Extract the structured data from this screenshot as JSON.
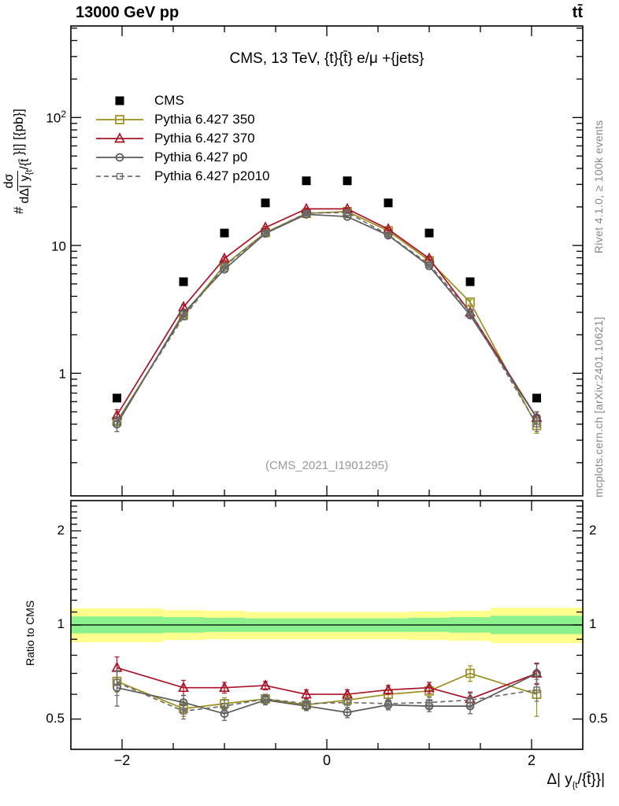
{
  "header": {
    "beam_energy": "13000 GeV pp",
    "process": "tt̄"
  },
  "panel": {
    "title": "CMS, 13 TeV, {t}{t̄} e/μ +{jets}",
    "watermark": "(CMS_2021_I1901295)"
  },
  "side_notes": {
    "rivet": "Rivet 4.1.0, ≥ 100k events",
    "mcplots": "mcplots.cern.ch [arXiv:2401.10621]"
  },
  "axes": {
    "y_prefix": "#",
    "y_num": "dσ",
    "y_den_main": "dΔ| y",
    "y_den_sub": "{t",
    "y_den_rest": "/{t̄",
    "y_suffix": "}|] [{pb}]",
    "y_ticks": [
      {
        "base": "10",
        "exp": "2"
      },
      {
        "base": "10",
        "exp": ""
      },
      {
        "base": "1",
        "exp": ""
      }
    ],
    "ratio_label": "Ratio to CMS",
    "ratio_ticks": [
      "2",
      "1",
      "0.5"
    ],
    "x_ticks": [
      "−2",
      "0",
      "2"
    ],
    "x_label_main": "Δ| y",
    "x_label_sub": "{t",
    "x_label_rest": "/{t̄}}|"
  },
  "chart_data": {
    "type": "line",
    "title": "CMS, 13 TeV, {t}{t̄} e/μ +{jets}",
    "xlabel": "Δ| y_{t}/{t̄}}|",
    "ylabel": "# dσ/dΔ| y_{t}/{t̄}}|] [{pb}]",
    "x_range": [
      -2.5,
      2.5
    ],
    "y_scale": "log",
    "y_range": [
      0.11,
      520
    ],
    "ratio_scale": "log",
    "ratio_range": [
      0.4,
      2.5
    ],
    "x_tick_values": [
      -2,
      0,
      2
    ],
    "x": [
      -2.05,
      -1.4,
      -1.0,
      -0.6,
      -0.2,
      0.2,
      0.6,
      1.0,
      1.4,
      2.05
    ],
    "bin_edges": [
      -2.5,
      -1.6,
      -1.2,
      -0.8,
      -0.4,
      0,
      0.4,
      0.8,
      1.2,
      1.6,
      2.5
    ],
    "series": [
      {
        "label": "CMS",
        "marker": "filled-square",
        "color": "#000000",
        "line": "none",
        "values": [
          0.64,
          5.2,
          12.5,
          21.5,
          32,
          32,
          21.5,
          12.5,
          5.2,
          0.64
        ]
      },
      {
        "label": "Pythia 6.427 350",
        "marker": "open-square",
        "color": "#9a8f1e",
        "line": "solid",
        "values": [
          0.42,
          2.85,
          7.0,
          12.6,
          17.8,
          18.4,
          13.0,
          7.6,
          3.6,
          0.39
        ],
        "errors": [
          0.04,
          0.12,
          0.2,
          0.28,
          0.35,
          0.35,
          0.28,
          0.2,
          0.15,
          0.05
        ],
        "ratio": [
          0.66,
          0.54,
          0.56,
          0.58,
          0.555,
          0.575,
          0.6,
          0.615,
          0.7,
          0.6
        ],
        "ratio_errors": [
          0.05,
          0.03,
          0.025,
          0.02,
          0.018,
          0.02,
          0.02,
          0.025,
          0.04,
          0.09
        ]
      },
      {
        "label": "Pythia 6.427 370",
        "marker": "open-triangle",
        "color": "#aa1327",
        "line": "solid",
        "values": [
          0.47,
          3.3,
          7.9,
          13.8,
          19.3,
          19.3,
          13.4,
          7.9,
          3.0,
          0.45
        ],
        "errors": [
          0.05,
          0.13,
          0.22,
          0.3,
          0.38,
          0.38,
          0.3,
          0.22,
          0.13,
          0.05
        ],
        "ratio": [
          0.73,
          0.63,
          0.63,
          0.64,
          0.6,
          0.6,
          0.62,
          0.63,
          0.58,
          0.7
        ],
        "ratio_errors": [
          0.06,
          0.035,
          0.025,
          0.02,
          0.02,
          0.02,
          0.02,
          0.025,
          0.03,
          0.055
        ]
      },
      {
        "label": "Pythia 6.427 p0",
        "marker": "open-circle",
        "color": "#5a5a5a",
        "line": "solid",
        "values": [
          0.4,
          2.95,
          6.5,
          12.4,
          17.5,
          16.8,
          12.0,
          6.9,
          2.85,
          0.45
        ],
        "errors": [
          0.05,
          0.12,
          0.2,
          0.28,
          0.35,
          0.35,
          0.28,
          0.2,
          0.12,
          0.05
        ],
        "ratio": [
          0.63,
          0.565,
          0.52,
          0.575,
          0.55,
          0.525,
          0.555,
          0.55,
          0.55,
          0.7
        ],
        "ratio_errors": [
          0.08,
          0.03,
          0.025,
          0.02,
          0.018,
          0.02,
          0.02,
          0.022,
          0.03,
          0.05
        ]
      },
      {
        "label": "Pythia 6.427 p2010",
        "marker": "open-square-small",
        "color": "#6e6e6e",
        "line": "dashed",
        "values": [
          0.42,
          2.75,
          6.9,
          12.5,
          17.9,
          18.1,
          12.1,
          7.1,
          3.0,
          0.4
        ],
        "errors": [
          0.04,
          0.12,
          0.2,
          0.28,
          0.35,
          0.35,
          0.28,
          0.2,
          0.12,
          0.05
        ],
        "ratio": [
          0.655,
          0.53,
          0.55,
          0.58,
          0.56,
          0.565,
          0.56,
          0.565,
          0.575,
          0.62
        ],
        "ratio_errors": [
          0.06,
          0.03,
          0.025,
          0.02,
          0.018,
          0.02,
          0.02,
          0.022,
          0.03,
          0.05
        ]
      }
    ],
    "ratio_bands": {
      "yellow_color": "#ffff8d",
      "green_color": "#8cf08c",
      "reference": 1,
      "segments": [
        {
          "x0": -2.5,
          "x1": -1.6,
          "yellow": [
            0.88,
            1.13
          ],
          "green": [
            0.94,
            1.065
          ]
        },
        {
          "x0": -1.6,
          "x1": -1.2,
          "yellow": [
            0.895,
            1.115
          ],
          "green": [
            0.945,
            1.06
          ]
        },
        {
          "x0": -1.2,
          "x1": -0.8,
          "yellow": [
            0.9,
            1.11
          ],
          "green": [
            0.95,
            1.055
          ]
        },
        {
          "x0": -0.8,
          "x1": -0.4,
          "yellow": [
            0.9,
            1.1
          ],
          "green": [
            0.95,
            1.05
          ]
        },
        {
          "x0": -0.4,
          "x1": 0,
          "yellow": [
            0.9,
            1.1
          ],
          "green": [
            0.95,
            1.05
          ]
        },
        {
          "x0": 0,
          "x1": 0.4,
          "yellow": [
            0.9,
            1.1
          ],
          "green": [
            0.95,
            1.05
          ]
        },
        {
          "x0": 0.4,
          "x1": 0.8,
          "yellow": [
            0.9,
            1.1
          ],
          "green": [
            0.95,
            1.05
          ]
        },
        {
          "x0": 0.8,
          "x1": 1.2,
          "yellow": [
            0.895,
            1.105
          ],
          "green": [
            0.95,
            1.055
          ]
        },
        {
          "x0": 1.2,
          "x1": 1.6,
          "yellow": [
            0.89,
            1.11
          ],
          "green": [
            0.945,
            1.06
          ]
        },
        {
          "x0": 1.6,
          "x1": 2.5,
          "yellow": [
            0.875,
            1.135
          ],
          "green": [
            0.935,
            1.07
          ]
        }
      ]
    }
  }
}
